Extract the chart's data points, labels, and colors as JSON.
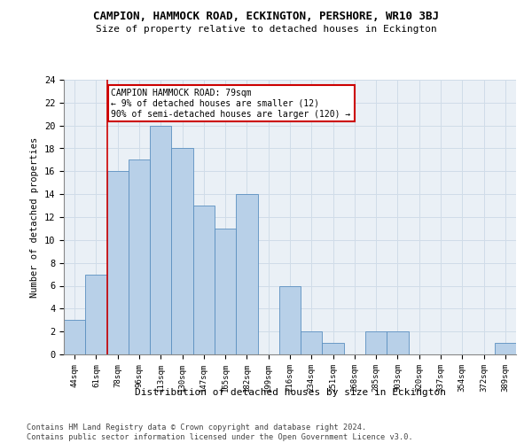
{
  "title": "CAMPION, HAMMOCK ROAD, ECKINGTON, PERSHORE, WR10 3BJ",
  "subtitle": "Size of property relative to detached houses in Eckington",
  "xlabel": "Distribution of detached houses by size in Eckington",
  "ylabel": "Number of detached properties",
  "categories": [
    "44sqm",
    "61sqm",
    "78sqm",
    "96sqm",
    "113sqm",
    "130sqm",
    "147sqm",
    "165sqm",
    "182sqm",
    "199sqm",
    "216sqm",
    "234sqm",
    "251sqm",
    "268sqm",
    "285sqm",
    "303sqm",
    "320sqm",
    "337sqm",
    "354sqm",
    "372sqm",
    "389sqm"
  ],
  "values": [
    3,
    7,
    16,
    17,
    20,
    18,
    13,
    11,
    14,
    0,
    6,
    2,
    1,
    0,
    2,
    2,
    0,
    0,
    0,
    0,
    1
  ],
  "bar_color": "#b8d0e8",
  "bar_edge_color": "#5a8fc0",
  "annotation_text": "CAMPION HAMMOCK ROAD: 79sqm\n← 9% of detached houses are smaller (12)\n90% of semi-detached houses are larger (120) →",
  "annotation_box_color": "#ffffff",
  "annotation_box_edge": "#cc0000",
  "vline_color": "#cc0000",
  "grid_color": "#d0dce8",
  "background_color": "#eaf0f6",
  "ylim": [
    0,
    24
  ],
  "yticks": [
    0,
    2,
    4,
    6,
    8,
    10,
    12,
    14,
    16,
    18,
    20,
    22,
    24
  ],
  "footer": "Contains HM Land Registry data © Crown copyright and database right 2024.\nContains public sector information licensed under the Open Government Licence v3.0.",
  "vline_index": 1.5
}
